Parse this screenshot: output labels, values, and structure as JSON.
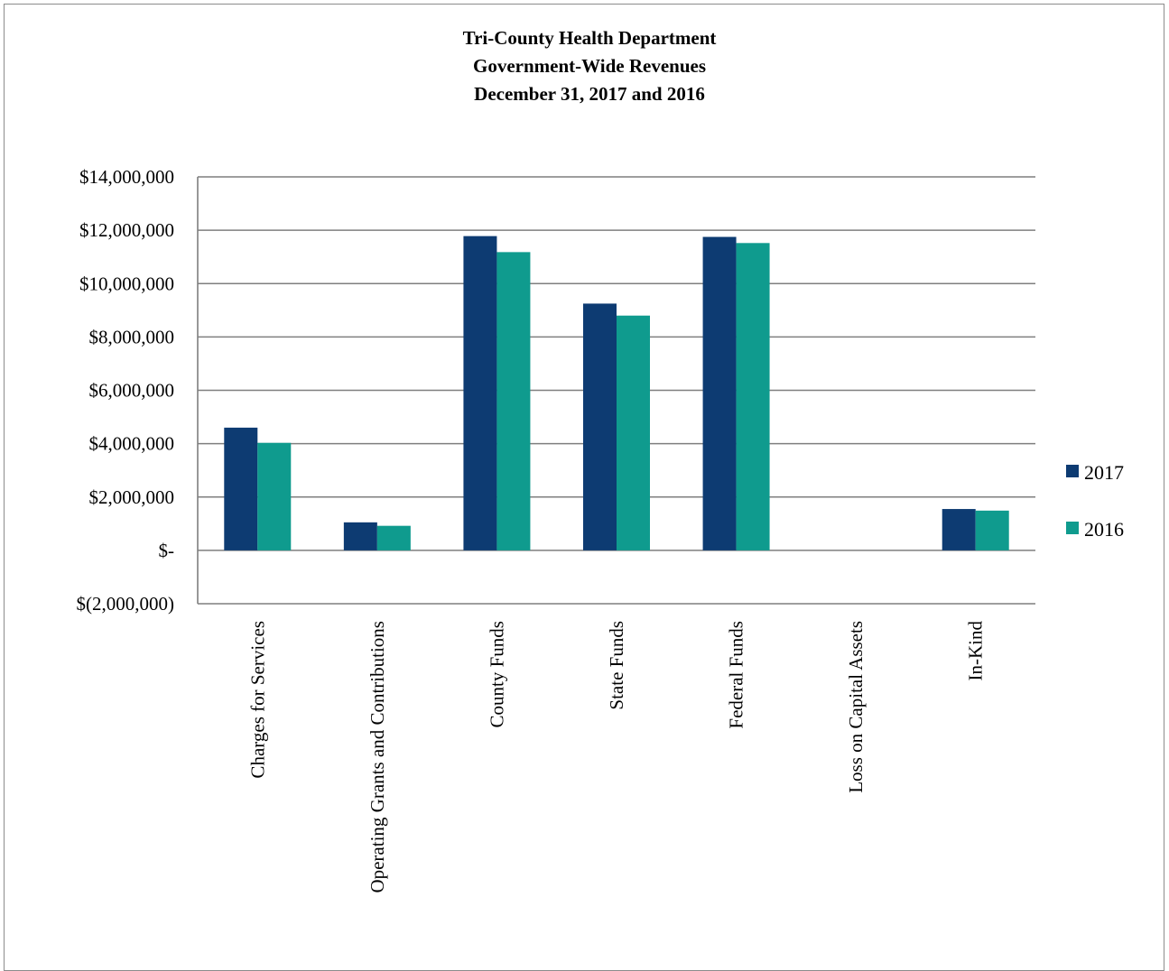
{
  "chart_data": {
    "type": "bar",
    "title": [
      "Tri-County  Health Department",
      "Government-Wide Revenues",
      "December 31, 2017 and 2016"
    ],
    "categories": [
      "Charges for Services",
      "Operating Grants and Contributions",
      "County Funds",
      "State Funds",
      "Federal Funds",
      "Loss on Capital Assets",
      "In-Kind"
    ],
    "series": [
      {
        "name": "2017",
        "color": "#0d3b72",
        "values": [
          4600000,
          1050000,
          11780000,
          9250000,
          11750000,
          0,
          1550000
        ]
      },
      {
        "name": "2016",
        "color": "#0f9b8e",
        "values": [
          4030000,
          920000,
          11180000,
          8800000,
          11520000,
          0,
          1490000
        ]
      }
    ],
    "ylim": [
      -2000000,
      14000000
    ],
    "yticks": [
      14000000,
      12000000,
      10000000,
      8000000,
      6000000,
      4000000,
      2000000,
      0,
      -2000000
    ],
    "ytick_labels": [
      "$14,000,000",
      "$12,000,000",
      "$10,000,000",
      "$8,000,000",
      "$6,000,000",
      "$4,000,000",
      "$2,000,000",
      "$-",
      "$(2,000,000)"
    ],
    "xlabel": "",
    "ylabel": "",
    "grid": true,
    "legend_position": "right"
  }
}
